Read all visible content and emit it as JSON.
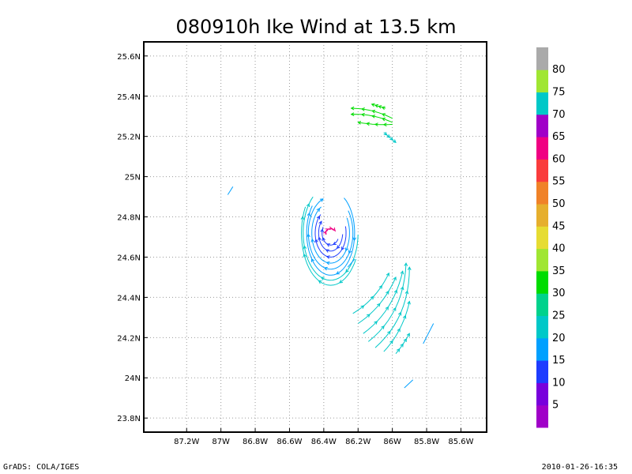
{
  "chart_data": {
    "type": "vector",
    "title": "080910h Ike Wind at 13.5 km",
    "xlabel": "",
    "ylabel": "",
    "xlim": [
      -87.45,
      -85.45
    ],
    "ylim": [
      23.73,
      25.67
    ],
    "x_ticks": [
      {
        "value": -87.2,
        "label": "87.2W"
      },
      {
        "value": -87.0,
        "label": "87W"
      },
      {
        "value": -86.8,
        "label": "86.8W"
      },
      {
        "value": -86.6,
        "label": "86.6W"
      },
      {
        "value": -86.4,
        "label": "86.4W"
      },
      {
        "value": -86.2,
        "label": "86.2W"
      },
      {
        "value": -86.0,
        "label": "86W"
      },
      {
        "value": -85.8,
        "label": "85.8W"
      },
      {
        "value": -85.6,
        "label": "85.6W"
      }
    ],
    "y_ticks": [
      {
        "value": 23.8,
        "label": "23.8N"
      },
      {
        "value": 24.0,
        "label": "24N"
      },
      {
        "value": 24.2,
        "label": "24.2N"
      },
      {
        "value": 24.4,
        "label": "24.4N"
      },
      {
        "value": 24.6,
        "label": "24.6N"
      },
      {
        "value": 24.8,
        "label": "24.8N"
      },
      {
        "value": 25.0,
        "label": "25N"
      },
      {
        "value": 25.2,
        "label": "25.2N"
      },
      {
        "value": 25.4,
        "label": "25.4N"
      },
      {
        "value": 25.6,
        "label": "25.6N"
      }
    ],
    "grid": true,
    "legend_position": "right",
    "colorbar": {
      "colors": [
        "#a000c8",
        "#7800dc",
        "#1e3cff",
        "#00a0ff",
        "#00c8c8",
        "#00d28c",
        "#00dc00",
        "#a0e632",
        "#e6dc32",
        "#e6af2d",
        "#f08228",
        "#fa3c3c",
        "#f00082",
        "#a000c8",
        "#00c8c8",
        "#a0e632",
        "#aaaaaa"
      ],
      "labels": [
        "5",
        "10",
        "15",
        "20",
        "25",
        "30",
        "35",
        "40",
        "45",
        "50",
        "55",
        "60",
        "65",
        "70",
        "75",
        "80"
      ]
    },
    "vector_color_scale": [
      {
        "max": 10,
        "color": "#7800dc"
      },
      {
        "max": 15,
        "color": "#1e3cff"
      },
      {
        "max": 20,
        "color": "#00a0ff"
      },
      {
        "max": 30,
        "color": "#00c8c8"
      },
      {
        "max": 50,
        "color": "#00dc00"
      },
      {
        "max": 70,
        "color": "#f00082"
      },
      {
        "max": 999,
        "color": "#a000c8"
      }
    ],
    "vortex": {
      "center": [
        -86.36,
        24.72
      ],
      "rings": [
        {
          "a": 0.03,
          "b": 0.022,
          "speed": 65,
          "start": 20,
          "end": 200
        },
        {
          "a": 0.05,
          "b": 0.06,
          "speed": 12,
          "start": 150,
          "end": 330
        },
        {
          "a": 0.07,
          "b": 0.09,
          "speed": 13,
          "start": 140,
          "end": 360
        },
        {
          "a": 0.09,
          "b": 0.12,
          "speed": 14,
          "start": 130,
          "end": 380
        },
        {
          "a": 0.11,
          "b": 0.15,
          "speed": 16,
          "start": 120,
          "end": 390
        },
        {
          "a": 0.13,
          "b": 0.18,
          "speed": 19,
          "start": 110,
          "end": 400
        },
        {
          "a": 0.14,
          "b": 0.21,
          "speed": 20,
          "start": 140,
          "end": 420
        },
        {
          "a": 0.16,
          "b": 0.235,
          "speed": 22,
          "start": 130,
          "end": 360
        },
        {
          "a": 0.17,
          "b": 0.26,
          "speed": 24,
          "start": 150,
          "end": 330
        }
      ]
    },
    "band_northeast": {
      "speed": 35,
      "arcs": [
        {
          "x0": -86.24,
          "y0": 25.34,
          "x1": -86.0,
          "y1": 25.29,
          "bend": 0.02
        },
        {
          "x0": -86.24,
          "y0": 25.31,
          "x1": -86.0,
          "y1": 25.27,
          "bend": 0.02
        },
        {
          "x0": -86.2,
          "y0": 25.27,
          "x1": -86.0,
          "y1": 25.26,
          "bend": -0.01
        },
        {
          "x0": -86.12,
          "y0": 25.36,
          "x1": -86.04,
          "y1": 25.34,
          "bend": 0.0
        }
      ],
      "stragglers_speed": 25,
      "stragglers": [
        {
          "x0": -86.05,
          "y0": 25.22,
          "x1": -85.98,
          "y1": 25.17,
          "bend": 0.0
        }
      ]
    },
    "band_southeast": {
      "speed": 24,
      "arcs": [
        {
          "x0": -86.23,
          "y0": 24.32,
          "x1": -86.02,
          "y1": 24.52,
          "bend": -0.03
        },
        {
          "x0": -86.2,
          "y0": 24.27,
          "x1": -85.98,
          "y1": 24.5,
          "bend": -0.03
        },
        {
          "x0": -86.17,
          "y0": 24.22,
          "x1": -85.94,
          "y1": 24.53,
          "bend": -0.04
        },
        {
          "x0": -86.14,
          "y0": 24.18,
          "x1": -85.92,
          "y1": 24.57,
          "bend": -0.05
        },
        {
          "x0": -86.1,
          "y0": 24.15,
          "x1": -85.9,
          "y1": 24.55,
          "bend": -0.05
        },
        {
          "x0": -86.05,
          "y0": 24.13,
          "x1": -85.9,
          "y1": 24.38,
          "bend": -0.03
        },
        {
          "x0": -85.98,
          "y0": 24.12,
          "x1": -85.9,
          "y1": 24.22,
          "bend": -0.01
        }
      ]
    },
    "isolated_vectors": [
      {
        "x0": -86.96,
        "y0": 24.91,
        "x1": -86.93,
        "y1": 24.95,
        "speed": 20
      },
      {
        "x0": -85.82,
        "y0": 24.17,
        "x1": -85.76,
        "y1": 24.27,
        "speed": 20
      },
      {
        "x0": -85.93,
        "y0": 23.95,
        "x1": -85.88,
        "y1": 23.99,
        "speed": 20
      },
      {
        "x0": -86.26,
        "y0": 24.55,
        "x1": -86.22,
        "y1": 24.59,
        "speed": 20
      }
    ]
  },
  "footer": {
    "left": "GrADS: COLA/IGES",
    "right": "2010-01-26-16:35"
  }
}
